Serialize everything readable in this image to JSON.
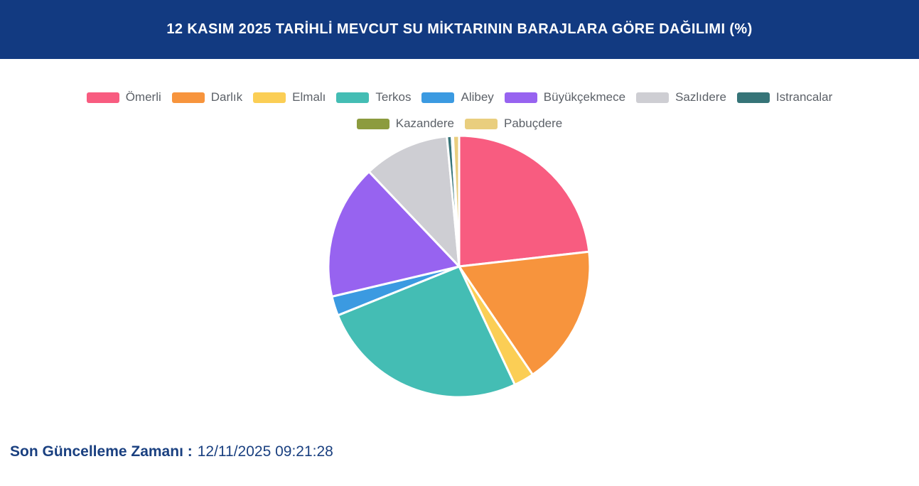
{
  "header": {
    "title": "12 KASIM 2025 TARİHLİ MEVCUT SU MİKTARININ BARAJLARA GÖRE DAĞILIMI (%)",
    "bg_color": "#123A81",
    "text_color": "#FFFFFF"
  },
  "chart_data": {
    "type": "pie",
    "title": "12 KASIM 2025 TARİHLİ MEVCUT SU MİKTARININ BARAJLARA GÖRE DAĞILIMI (%)",
    "unit": "%",
    "categories": [
      "Ömerli",
      "Darlık",
      "Elmalı",
      "Terkos",
      "Alibey",
      "Büyükçekmece",
      "Sazlıdere",
      "Istrancalar",
      "Kazandere",
      "Pabuçdere"
    ],
    "values": [
      23.2,
      17.3,
      2.5,
      25.9,
      2.4,
      16.6,
      10.6,
      0.6,
      0.15,
      0.75
    ],
    "colors": [
      "#F85C80",
      "#F7943D",
      "#FBCE55",
      "#44BDB4",
      "#3B9AE1",
      "#9763F0",
      "#CECED3",
      "#367478",
      "#8C9B3E",
      "#E9CE7E"
    ],
    "legend_position": "top",
    "start_angle_deg": 0,
    "direction": "clockwise",
    "slice_border_color": "#FFFFFF"
  },
  "footer": {
    "label": "Son Güncelleme Zamanı :",
    "value": "12/11/2025 09:21:28"
  }
}
